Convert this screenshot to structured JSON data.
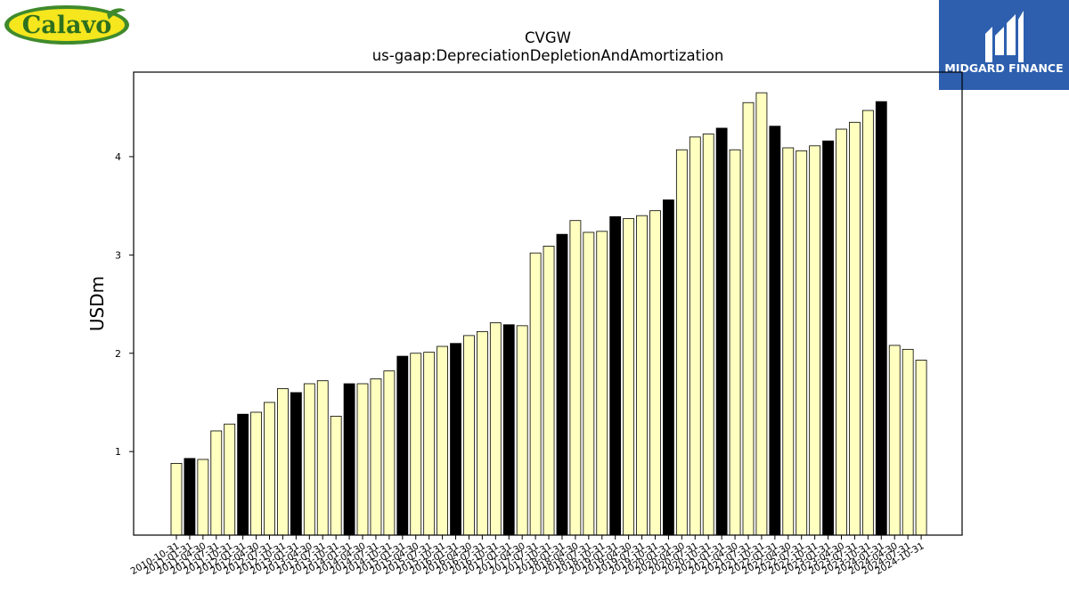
{
  "logos": {
    "left_text": "Calavo",
    "right_text": "MIDGARD FINANCE"
  },
  "colors": {
    "bar_regular": "#ffffc0",
    "bar_highlight": "#000000",
    "bar_edge": "#000000",
    "calavo_green": "#3f8a2c",
    "calavo_yellow": "#f5e61e",
    "midgard_blue": "#2d5fae"
  },
  "chart_data": {
    "type": "bar",
    "title": "CVGW",
    "subtitle": "us-gaap:DepreciationDepletionAndAmortization",
    "xlabel": "",
    "ylabel": "USDm",
    "ylim": [
      0.15,
      4.86
    ],
    "yticks": [
      1,
      2,
      3,
      4
    ],
    "grid": false,
    "legend": "none",
    "categories": [
      "2010-10-31",
      "2011-01-31",
      "2011-04-30",
      "2011-07-31",
      "2011-10-31",
      "2012-01-31",
      "2012-04-30",
      "2012-07-31",
      "2012-10-31",
      "2013-01-31",
      "2013-04-30",
      "2013-07-31",
      "2013-10-31",
      "2014-01-31",
      "2014-04-30",
      "2014-07-31",
      "2014-10-31",
      "2015-01-31",
      "2015-04-30",
      "2015-07-31",
      "2015-10-31",
      "2016-01-31",
      "2016-04-30",
      "2016-07-31",
      "2016-10-31",
      "2017-01-31",
      "2017-04-30",
      "2017-07-31",
      "2017-10-31",
      "2018-01-31",
      "2018-04-30",
      "2018-07-31",
      "2018-10-31",
      "2019-01-31",
      "2019-04-30",
      "2019-07-31",
      "2019-10-31",
      "2020-01-31",
      "2020-04-30",
      "2020-07-31",
      "2020-10-31",
      "2021-01-31",
      "2021-04-30",
      "2021-07-31",
      "2021-10-31",
      "2022-01-31",
      "2022-04-30",
      "2022-07-31",
      "2022-10-31",
      "2023-01-31",
      "2023-04-30",
      "2023-07-31",
      "2023-10-31",
      "2024-01-31",
      "2024-04-30",
      "2024-07-31",
      "2024-10-31"
    ],
    "values": [
      0.88,
      0.93,
      0.92,
      1.21,
      1.28,
      1.38,
      1.4,
      1.5,
      1.64,
      1.6,
      1.69,
      1.72,
      1.36,
      1.69,
      1.69,
      1.74,
      1.82,
      1.97,
      2.0,
      2.01,
      2.07,
      2.1,
      2.18,
      2.22,
      2.31,
      2.29,
      2.28,
      3.02,
      3.09,
      3.21,
      3.35,
      3.23,
      3.24,
      3.39,
      3.37,
      3.4,
      3.45,
      3.56,
      4.07,
      4.2,
      4.23,
      4.29,
      4.07,
      4.55,
      4.65,
      4.31,
      4.09,
      4.06,
      4.11,
      4.16,
      4.28,
      4.35,
      4.47,
      4.56,
      2.08,
      2.04,
      1.93
    ],
    "highlighted": [
      false,
      true,
      false,
      false,
      false,
      true,
      false,
      false,
      false,
      true,
      false,
      false,
      false,
      true,
      false,
      false,
      false,
      true,
      false,
      false,
      false,
      true,
      false,
      false,
      false,
      true,
      false,
      false,
      false,
      true,
      false,
      false,
      false,
      true,
      false,
      false,
      false,
      true,
      false,
      false,
      false,
      true,
      false,
      false,
      false,
      true,
      false,
      false,
      false,
      true,
      false,
      false,
      false,
      true,
      false,
      false,
      false
    ]
  }
}
